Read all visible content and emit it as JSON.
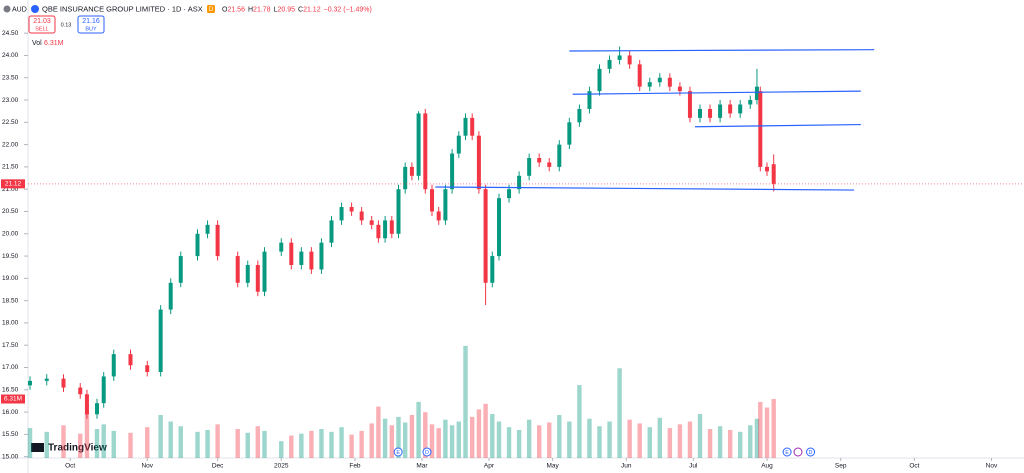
{
  "header": {
    "currency": "AUD",
    "symbol": "QBE INSURANCE GROUP LIMITED · 1D · ASX",
    "badge": "D",
    "quote": [
      {
        "key": "O",
        "value": 21.56
      },
      {
        "key": "H",
        "value": 21.78
      },
      {
        "key": "L",
        "value": 20.95
      },
      {
        "key": "C",
        "value": 21.12
      }
    ],
    "change": "−0.32 (−1.49%)",
    "sell": {
      "price": "21.03",
      "label": "SELL"
    },
    "spread": "0.13",
    "buy": {
      "price": "21.16",
      "label": "BUY"
    },
    "volume": {
      "label": "Vol",
      "value_label": "6.31M"
    },
    "brand": "TradingView"
  },
  "chart_data": {
    "type": "candlestick",
    "x": [
      0,
      5,
      10,
      15,
      17,
      20,
      22,
      25,
      30,
      35,
      39,
      42,
      45,
      50,
      53,
      56,
      62,
      65,
      68,
      70,
      75,
      78,
      81,
      84,
      87,
      90,
      93,
      96,
      99,
      102,
      104,
      106,
      108,
      110,
      112,
      114,
      116,
      118,
      120,
      122,
      124,
      126,
      128,
      130,
      132,
      134,
      136,
      138,
      140,
      143,
      146,
      149,
      152,
      155,
      158,
      161,
      164,
      167,
      170,
      173,
      176,
      179,
      182,
      185,
      188,
      191,
      194,
      197,
      200,
      203,
      206,
      209,
      212,
      215,
      217,
      218,
      220,
      222
    ],
    "open": [
      16.6,
      16.7,
      16.75,
      16.55,
      16.4,
      15.95,
      16.2,
      16.8,
      17.3,
      17.05,
      16.9,
      18.3,
      18.9,
      19.5,
      20.0,
      20.2,
      19.5,
      18.9,
      19.3,
      18.7,
      19.6,
      19.8,
      19.3,
      19.6,
      19.2,
      19.8,
      20.3,
      20.6,
      20.5,
      20.3,
      20.2,
      19.9,
      20.3,
      20.0,
      21.0,
      21.5,
      21.3,
      22.7,
      21.0,
      20.5,
      20.3,
      21.0,
      21.8,
      22.2,
      22.6,
      22.2,
      21.0,
      18.9,
      19.5,
      20.8,
      21.0,
      21.3,
      21.7,
      21.6,
      21.5,
      22.0,
      22.5,
      22.8,
      23.2,
      23.7,
      23.9,
      24.0,
      23.8,
      23.3,
      23.4,
      23.5,
      23.3,
      23.2,
      22.6,
      22.8,
      22.6,
      22.9,
      22.7,
      22.9,
      23.0,
      23.2,
      21.5,
      21.56
    ],
    "high": [
      16.8,
      16.85,
      16.85,
      16.65,
      16.5,
      16.3,
      16.9,
      17.4,
      17.4,
      17.15,
      18.4,
      19.0,
      19.6,
      20.1,
      20.3,
      20.3,
      19.6,
      19.4,
      19.4,
      19.7,
      19.9,
      19.9,
      19.7,
      19.7,
      19.9,
      20.4,
      20.7,
      20.7,
      20.6,
      20.4,
      20.3,
      20.4,
      20.4,
      21.1,
      21.6,
      21.6,
      22.75,
      22.8,
      21.1,
      20.6,
      21.1,
      21.9,
      22.3,
      22.7,
      22.7,
      22.3,
      21.1,
      19.6,
      20.9,
      21.1,
      21.4,
      21.8,
      21.8,
      21.7,
      22.1,
      22.6,
      22.9,
      23.3,
      23.8,
      24.0,
      24.2,
      24.1,
      23.9,
      23.5,
      23.6,
      23.6,
      23.4,
      23.3,
      22.9,
      22.9,
      23.0,
      23.0,
      23.0,
      23.1,
      23.7,
      23.3,
      21.6,
      21.78
    ],
    "low": [
      16.5,
      16.6,
      16.45,
      16.3,
      15.85,
      15.85,
      16.1,
      16.7,
      16.95,
      16.8,
      16.8,
      18.2,
      18.8,
      19.4,
      19.9,
      19.4,
      18.8,
      18.8,
      18.6,
      18.6,
      19.5,
      19.2,
      19.2,
      19.1,
      19.1,
      19.7,
      20.2,
      20.4,
      20.2,
      20.1,
      19.8,
      19.8,
      19.9,
      19.9,
      20.9,
      21.2,
      21.2,
      20.9,
      20.4,
      20.2,
      20.2,
      20.9,
      21.7,
      22.1,
      22.1,
      20.9,
      18.4,
      18.8,
      19.4,
      20.7,
      20.9,
      21.2,
      21.5,
      21.4,
      21.4,
      21.9,
      22.4,
      22.7,
      23.1,
      23.6,
      23.8,
      23.7,
      23.2,
      23.2,
      23.3,
      23.2,
      23.1,
      22.5,
      22.5,
      22.5,
      22.5,
      22.6,
      22.6,
      22.8,
      22.9,
      21.4,
      21.3,
      20.95
    ],
    "close": [
      16.7,
      16.75,
      16.55,
      16.4,
      15.95,
      16.2,
      16.8,
      17.3,
      17.05,
      16.9,
      18.3,
      18.9,
      19.5,
      20.0,
      20.2,
      19.5,
      18.9,
      19.3,
      18.7,
      19.6,
      19.8,
      19.3,
      19.6,
      19.2,
      19.8,
      20.3,
      20.6,
      20.5,
      20.3,
      20.2,
      19.9,
      20.3,
      20.0,
      21.0,
      21.5,
      21.3,
      22.7,
      21.0,
      20.5,
      20.3,
      21.0,
      21.8,
      22.2,
      22.6,
      22.2,
      21.0,
      18.9,
      19.5,
      20.8,
      21.0,
      21.3,
      21.7,
      21.6,
      21.5,
      22.0,
      22.5,
      22.8,
      23.2,
      23.7,
      23.9,
      24.0,
      23.8,
      23.3,
      23.4,
      23.5,
      23.3,
      23.2,
      22.6,
      22.8,
      22.6,
      22.9,
      22.7,
      22.9,
      23.0,
      23.3,
      21.5,
      21.4,
      21.12
    ],
    "volume": [
      3.2,
      2.8,
      3.5,
      2.6,
      4.8,
      3.1,
      3.6,
      2.9,
      2.7,
      3.3,
      4.6,
      3.9,
      3.4,
      2.8,
      3.0,
      3.6,
      3.1,
      2.7,
      3.4,
      2.9,
      1.8,
      2.4,
      2.6,
      2.9,
      3.1,
      2.8,
      3.3,
      2.5,
      2.9,
      3.7,
      5.5,
      4.2,
      3.5,
      4.4,
      3.8,
      4.6,
      6.0,
      4.9,
      3.6,
      3.2,
      4.1,
      3.5,
      3.9,
      12.0,
      4.4,
      5.2,
      5.8,
      4.7,
      3.9,
      3.3,
      3.0,
      4.1,
      3.5,
      3.8,
      4.6,
      3.9,
      7.8,
      4.2,
      3.4,
      3.9,
      9.6,
      4.1,
      3.7,
      3.3,
      4.3,
      3.2,
      3.6,
      3.9,
      4.7,
      3.1,
      3.4,
      3.0,
      2.8,
      3.5,
      4.2,
      6.0,
      5.4,
      6.31
    ],
    "xlim": [
      -1,
      295
    ],
    "ylim": [
      14.97,
      24.93
    ],
    "volume_lim": [
      0,
      47.5
    ],
    "xticks": [
      {
        "value": 12,
        "label": "Oct"
      },
      {
        "value": 35,
        "label": "Nov"
      },
      {
        "value": 56,
        "label": "Dec"
      },
      {
        "value": 75,
        "label": "2025"
      },
      {
        "value": 97,
        "label": "Feb"
      },
      {
        "value": 117,
        "label": "Mar"
      },
      {
        "value": 137,
        "label": "Apr"
      },
      {
        "value": 156,
        "label": "May"
      },
      {
        "value": 178,
        "label": "Jun"
      },
      {
        "value": 198,
        "label": "Jul"
      },
      {
        "value": 220,
        "label": "Aug"
      },
      {
        "value": 242,
        "label": "Sep"
      },
      {
        "value": 264,
        "label": "Oct"
      },
      {
        "value": 287,
        "label": "Nov"
      }
    ],
    "yticks": [
      {
        "value": 24.5,
        "label": "24.50"
      },
      {
        "value": 24,
        "label": "24.00"
      },
      {
        "value": 23.5,
        "label": "23.50"
      },
      {
        "value": 23,
        "label": "23.00"
      },
      {
        "value": 22.5,
        "label": "22.50"
      },
      {
        "value": 22,
        "label": "22.00"
      },
      {
        "value": 21.5,
        "label": "21.50"
      },
      {
        "value": 21,
        "label": "21.00"
      },
      {
        "value": 20.5,
        "label": "20.50"
      },
      {
        "value": 20,
        "label": "20.00"
      },
      {
        "value": 19.5,
        "label": "19.50"
      },
      {
        "value": 19,
        "label": "19.00"
      },
      {
        "value": 18.5,
        "label": "18.50"
      },
      {
        "value": 18,
        "label": "18.00"
      },
      {
        "value": 17.5,
        "label": "17.50"
      },
      {
        "value": 17,
        "label": "17.00"
      },
      {
        "value": 16.5,
        "label": "16.50"
      },
      {
        "value": 16,
        "label": "16.00"
      },
      {
        "value": 15.5,
        "label": "15.50"
      },
      {
        "value": 15,
        "label": "15.00"
      }
    ],
    "drawings": [
      {
        "x": [
          161,
          252
        ],
        "y": [
          24.1,
          24.13
        ]
      },
      {
        "x": [
          162,
          248
        ],
        "y": [
          23.13,
          23.2
        ]
      },
      {
        "x": [
          198.5,
          248
        ],
        "y": [
          22.4,
          22.45
        ]
      },
      {
        "x": [
          121,
          246
        ],
        "y": [
          21.05,
          20.98
        ]
      }
    ],
    "events": [
      {
        "x": 109.9,
        "label": "E"
      },
      {
        "x": 118.5,
        "label": "D"
      },
      {
        "x": 226,
        "label": "E"
      },
      {
        "x": 233,
        "label": "D"
      }
    ],
    "up_color": "#089981",
    "down_color": "#f23645",
    "line_color": "#2962ff"
  }
}
